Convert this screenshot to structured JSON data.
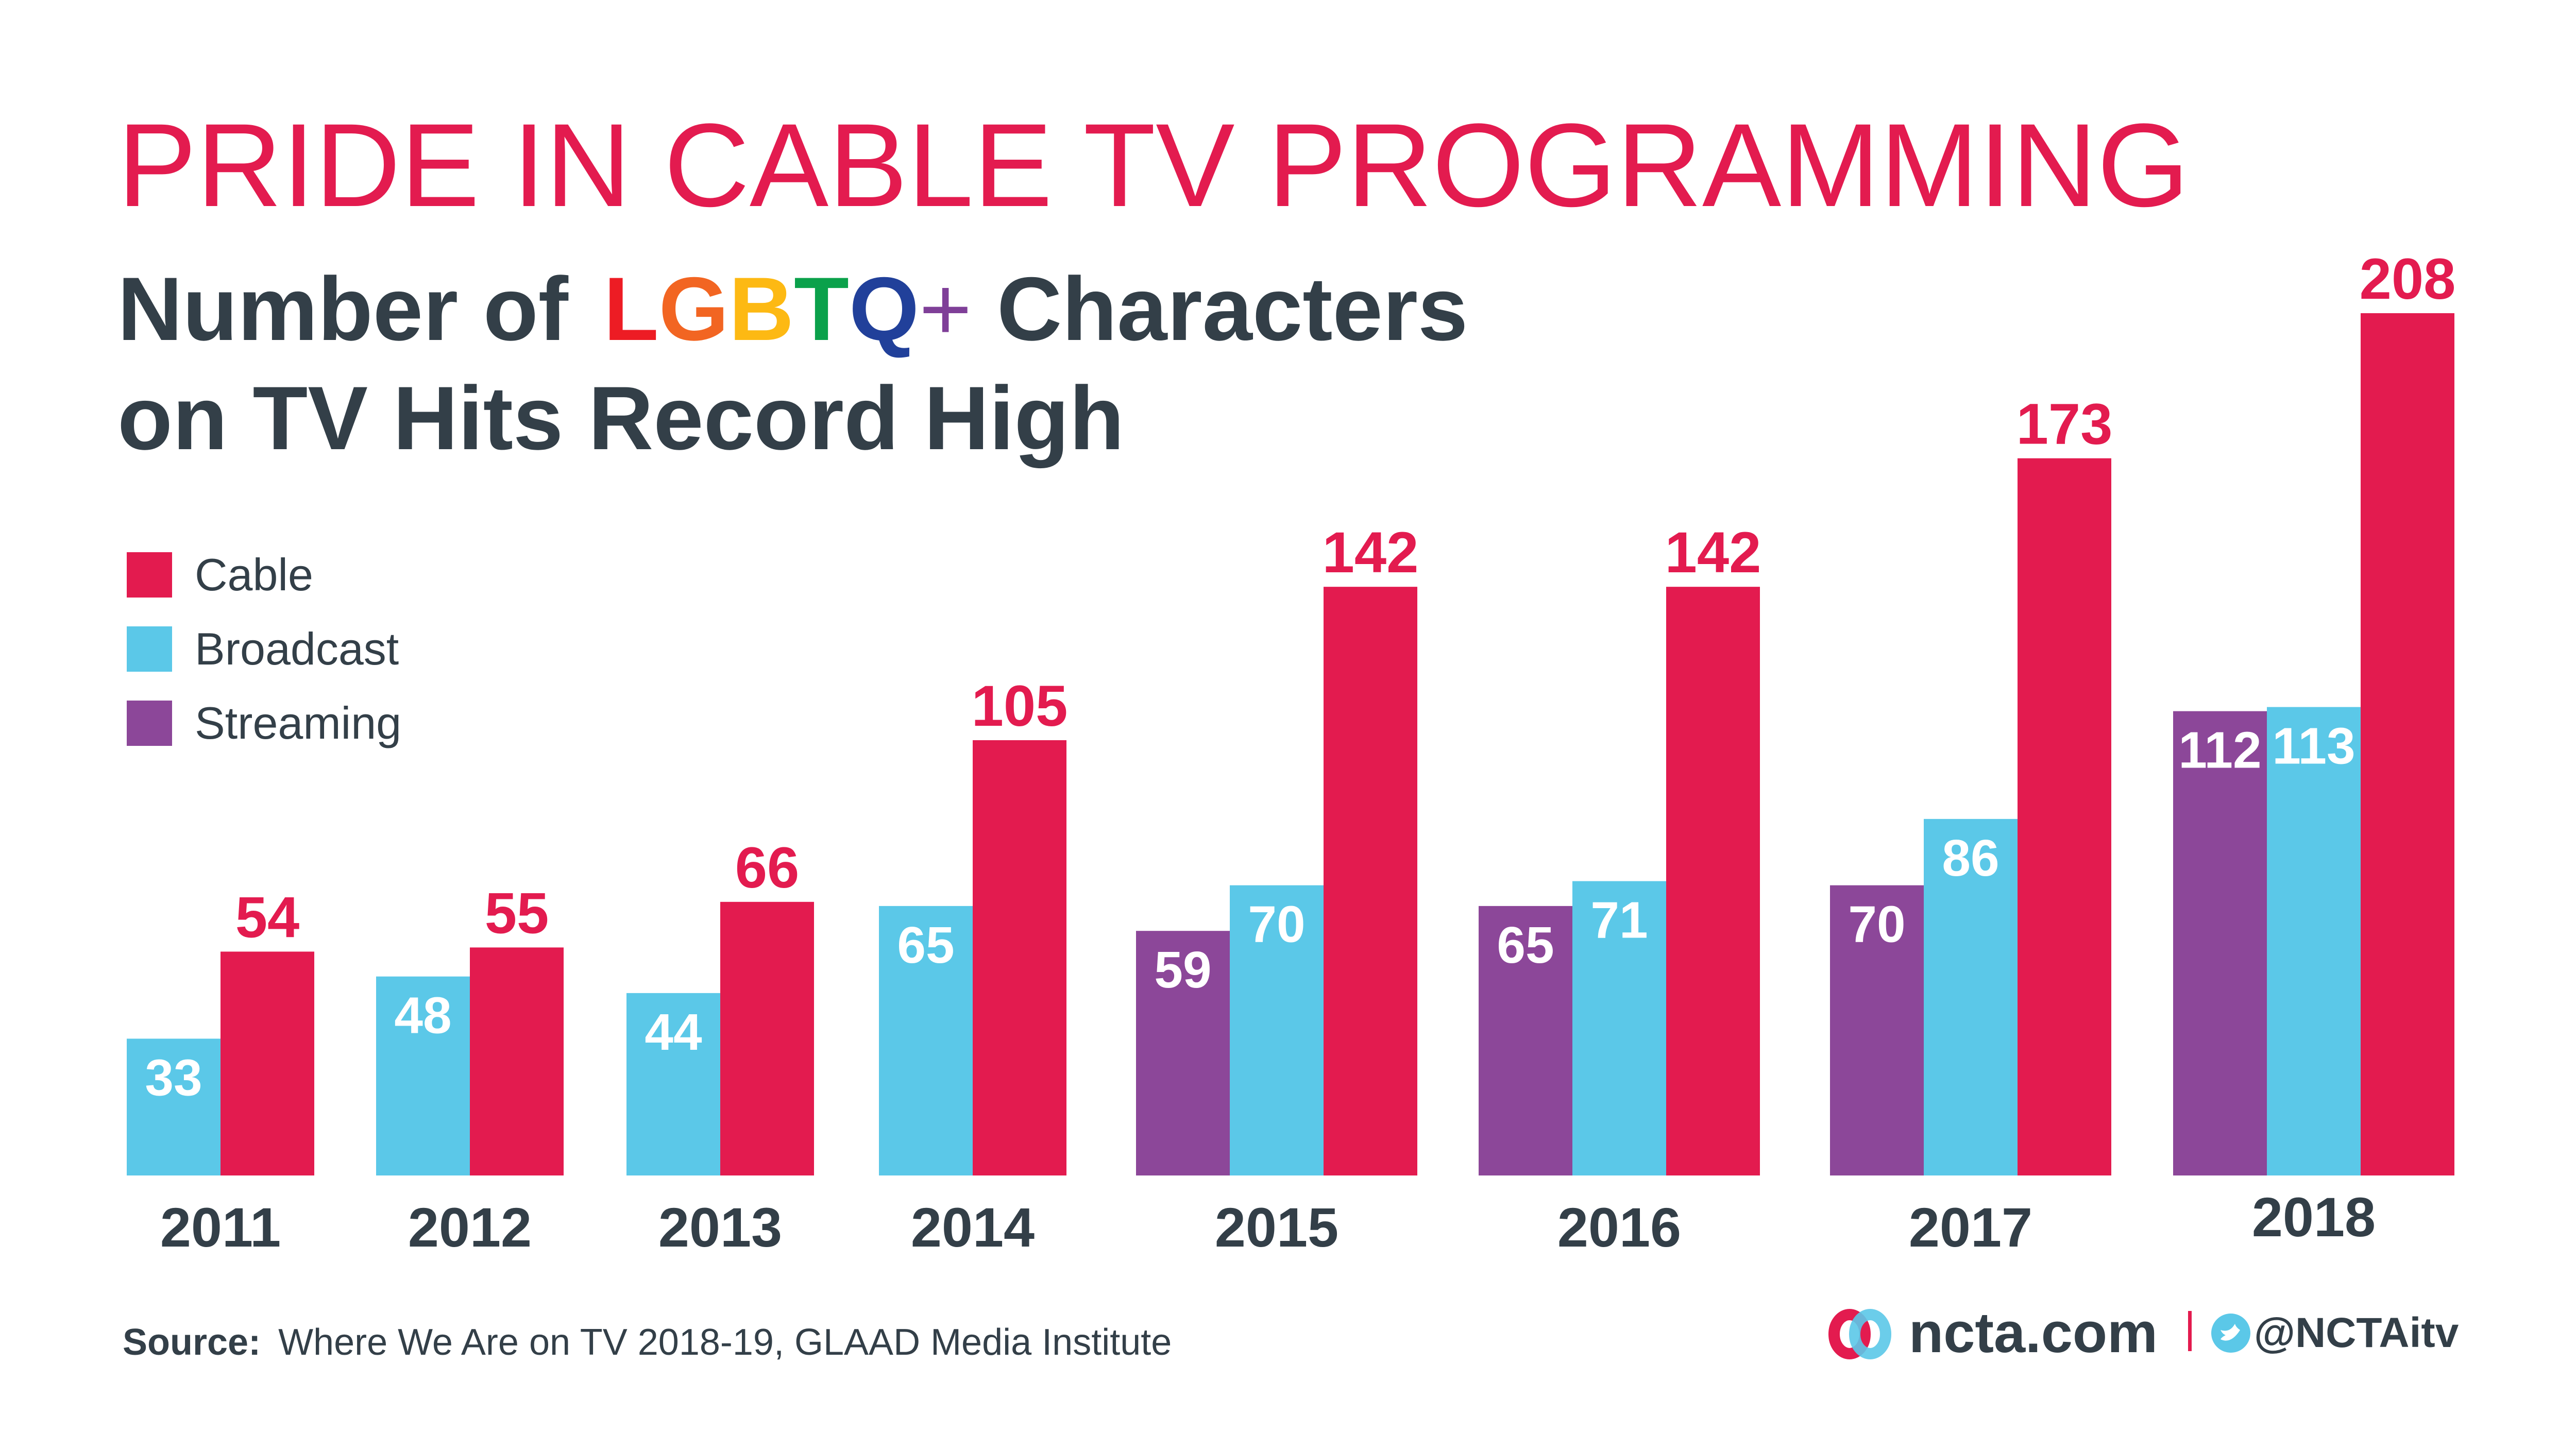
{
  "header": {
    "title": "PRIDE IN CABLE TV PROGRAMMING",
    "subtitle_prefix": "Number of",
    "subtitle_letters": [
      {
        "char": "L",
        "color": "#ED1C24"
      },
      {
        "char": "G",
        "color": "#F26522"
      },
      {
        "char": "B",
        "color": "#FDB913"
      },
      {
        "char": "T",
        "color": "#0BA14B"
      },
      {
        "char": "Q",
        "color": "#21409A"
      },
      {
        "char": "+",
        "color": "#7F3F98"
      }
    ],
    "subtitle_suffix": "Characters",
    "subtitle_line2": "on TV Hits Record High"
  },
  "chart_data": {
    "type": "bar",
    "title": "Number of LGBTQ+ Characters on TV Hits Record High",
    "xlabel": "",
    "ylabel": "",
    "ylim": [
      0,
      208
    ],
    "grid": false,
    "legend_position": "left",
    "categories": [
      "2011",
      "2012",
      "2013",
      "2014",
      "2015",
      "2016",
      "2017",
      "2018"
    ],
    "series": [
      {
        "name": "Streaming",
        "color": "#8C4799",
        "values": [
          null,
          null,
          null,
          null,
          59,
          65,
          70,
          112
        ]
      },
      {
        "name": "Broadcast",
        "color": "#5BC8E8",
        "values": [
          33,
          48,
          44,
          65,
          70,
          71,
          86,
          113
        ]
      },
      {
        "name": "Cable",
        "color": "#E31B4F",
        "values": [
          54,
          55,
          66,
          105,
          142,
          142,
          173,
          208
        ]
      }
    ]
  },
  "legend": [
    {
      "label": "Cable",
      "color": "#E31B4F"
    },
    {
      "label": "Broadcast",
      "color": "#5BC8E8"
    },
    {
      "label": "Streaming",
      "color": "#8C4799"
    }
  ],
  "footer": {
    "source_label": "Source:",
    "source_text": "Where We Are on TV 2018-19, GLAAD Media Institute",
    "brand": "ncta.com",
    "handle": "@NCTAitv",
    "brand_icon": "ncta-rings-logo",
    "social_icon": "twitter-bird-icon"
  }
}
